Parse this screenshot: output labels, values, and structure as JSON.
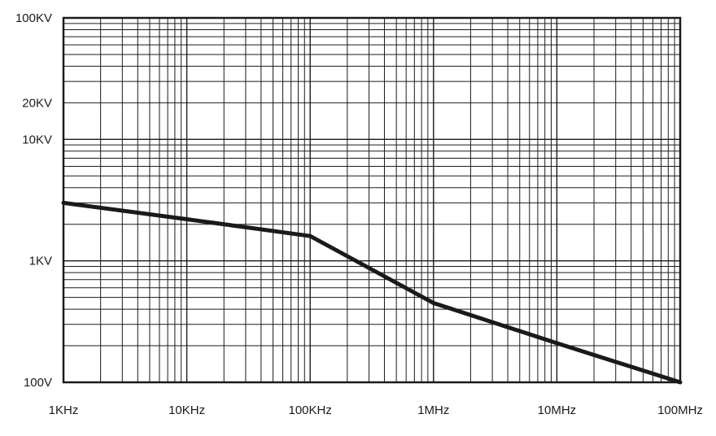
{
  "chart_data": {
    "type": "line",
    "title": "",
    "xlabel": "",
    "ylabel": "",
    "x_scale": "log",
    "y_scale": "log",
    "xlim": [
      1000,
      100000000
    ],
    "ylim": [
      100,
      100000
    ],
    "grid": true,
    "x_ticks": [
      {
        "value": 1000,
        "label": "1KHz"
      },
      {
        "value": 10000,
        "label": "10KHz"
      },
      {
        "value": 100000,
        "label": "100KHz"
      },
      {
        "value": 1000000,
        "label": "1MHz"
      },
      {
        "value": 10000000,
        "label": "10MHz"
      },
      {
        "value": 100000000,
        "label": "100MHz"
      }
    ],
    "y_ticks": [
      {
        "value": 100,
        "label": "100V"
      },
      {
        "value": 1000,
        "label": "1KV"
      },
      {
        "value": 10000,
        "label": "10KV"
      },
      {
        "value": 20000,
        "label": "20KV"
      },
      {
        "value": 100000,
        "label": "100KV"
      }
    ],
    "series": [
      {
        "color": "#1a1a1a",
        "x": [
          1000,
          10000,
          100000,
          1000000,
          10000000,
          100000000
        ],
        "y": [
          3000,
          2200,
          1600,
          450,
          210,
          100
        ]
      }
    ]
  }
}
